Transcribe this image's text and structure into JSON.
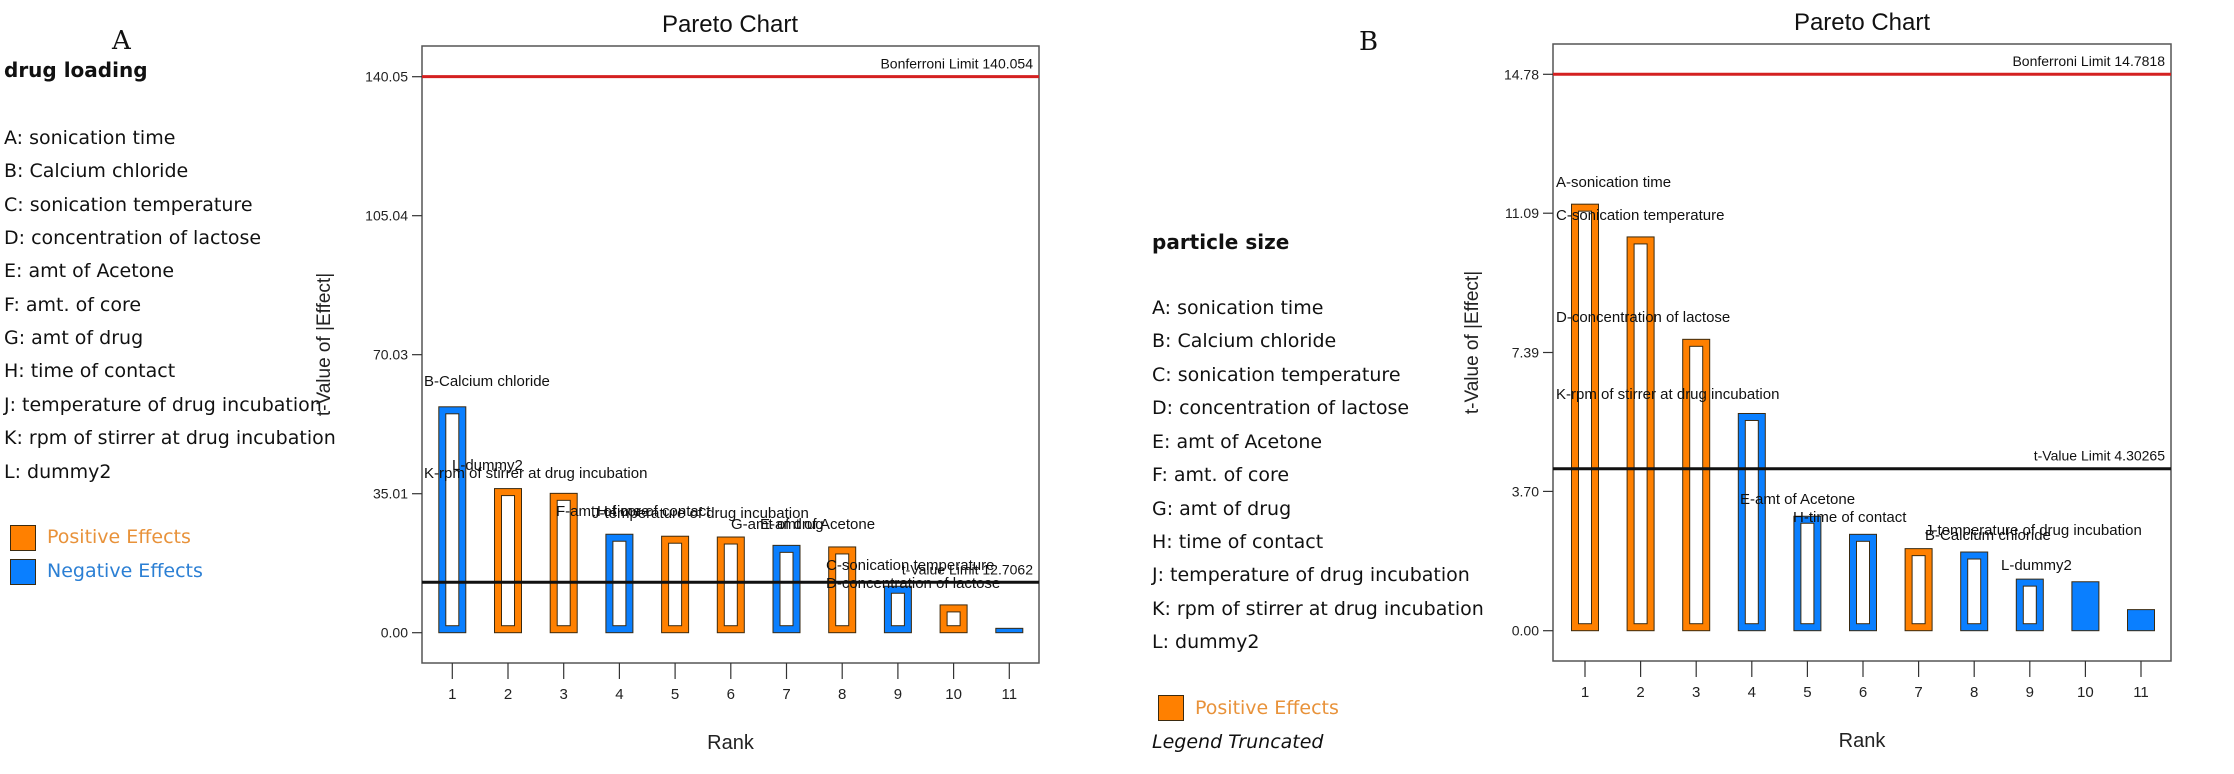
{
  "panels": [
    {
      "letter": "A",
      "response": "drug loading",
      "factors": [
        "A: sonication time",
        "B: Calcium chloride",
        "C: sonication temperature",
        "D: concentration of lactose",
        "E: amt of Acetone",
        "F: amt. of core",
        "G: amt of drug",
        "H: time of contact",
        "J: temperature of drug incubation",
        "K: rpm of stirrer at drug incubation",
        "L: dummy2"
      ],
      "legend": [
        {
          "label": "Positive Effects",
          "swatch": "#ff8000",
          "text_color": "#e8923a"
        },
        {
          "label": "Negative Effects",
          "swatch": "#0a7fff",
          "text_color": "#2b7fd4"
        }
      ],
      "legend_note": ""
    },
    {
      "letter": "B",
      "response": "particle size",
      "factors": [
        "A: sonication time",
        "B: Calcium chloride",
        "C: sonication temperature",
        "D: concentration of lactose",
        "E: amt of Acetone",
        "F: amt. of core",
        "G: amt of drug",
        "H: time of contact",
        "J: temperature of drug incubation",
        "K: rpm of stirrer at drug incubation",
        "L: dummy2"
      ],
      "legend": [
        {
          "label": "Positive Effects",
          "swatch": "#ff8000",
          "text_color": "#e8923a"
        }
      ],
      "legend_note": "Legend Truncated"
    }
  ],
  "colors": {
    "positive": "#ff8000",
    "negative": "#0a7fff",
    "bar_outline": "#3a2a10",
    "bonferroni": "#d42020",
    "t_limit": "#111111",
    "frame": "#555555"
  },
  "chart_data": [
    {
      "type": "bar",
      "title": "Pareto Chart",
      "xlabel": "Rank",
      "ylabel": "t-Value of |Effect|",
      "categories": [
        "1",
        "2",
        "3",
        "4",
        "5",
        "6",
        "7",
        "8",
        "9",
        "10",
        "11"
      ],
      "yticks": [
        "0.00",
        "35.01",
        "70.03",
        "105.04",
        "140.05"
      ],
      "ytick_values": [
        0,
        35.01,
        70.03,
        105.04,
        140.05
      ],
      "ylim": [
        -7.8,
        155
      ],
      "grid": false,
      "reference_lines": [
        {
          "name": "Bonferroni Limit",
          "label": "Bonferroni Limit 140.054",
          "value": 140.054,
          "color": "bonferroni"
        },
        {
          "name": "t-Value Limit",
          "label": "t-Value Limit 12.7062",
          "value": 12.7062,
          "color": "t_limit"
        }
      ],
      "bars": [
        {
          "rank": 1,
          "term": "B-Calcium chloride",
          "value": 56.9,
          "effect": "negative",
          "filled": false
        },
        {
          "rank": 2,
          "term": "L-dummy2",
          "value": 36.3,
          "effect": "positive",
          "filled": false
        },
        {
          "rank": 3,
          "term": "K-rpm of stirrer at drug incubation",
          "value": 35.1,
          "effect": "positive",
          "filled": false
        },
        {
          "rank": 4,
          "term": "F-amt. of core",
          "value": 24.8,
          "effect": "negative",
          "filled": false
        },
        {
          "rank": 5,
          "term": "H-time of contact",
          "value": 24.3,
          "effect": "positive",
          "filled": false
        },
        {
          "rank": 6,
          "term": "J-temperature of drug incubation",
          "value": 24.1,
          "effect": "positive",
          "filled": false
        },
        {
          "rank": 7,
          "term": "G-amt of drug",
          "value": 22.0,
          "effect": "negative",
          "filled": false
        },
        {
          "rank": 8,
          "term": "E-amt of Acetone",
          "value": 21.6,
          "effect": "positive",
          "filled": false
        },
        {
          "rank": 9,
          "term": "C-sonication temperature",
          "value": 11.7,
          "effect": "negative",
          "filled": false
        },
        {
          "rank": 10,
          "term": "D-concentration of lactose",
          "value": 7.0,
          "effect": "positive",
          "filled": false
        },
        {
          "rank": 11,
          "term": "",
          "value": 1.1,
          "effect": "negative",
          "filled": true
        }
      ],
      "legend": "left"
    },
    {
      "type": "bar",
      "title": "Pareto Chart",
      "xlabel": "Rank",
      "ylabel": "t-Value of |Effect|",
      "categories": [
        "1",
        "2",
        "3",
        "4",
        "5",
        "6",
        "7",
        "8",
        "9",
        "10",
        "11"
      ],
      "yticks": [
        "0.00",
        "3.70",
        "7.39",
        "11.09",
        "14.78"
      ],
      "ytick_values": [
        0,
        3.7,
        7.39,
        11.09,
        14.78
      ],
      "ylim": [
        -0.8,
        15.9
      ],
      "grid": false,
      "reference_lines": [
        {
          "name": "Bonferroni Limit",
          "label": "Bonferroni Limit 14.7818",
          "value": 14.7818,
          "color": "bonferroni"
        },
        {
          "name": "t-Value Limit",
          "label": "t-Value Limit 4.30265",
          "value": 4.30265,
          "color": "t_limit"
        }
      ],
      "bars": [
        {
          "rank": 1,
          "term": "A-sonication time",
          "value": 11.33,
          "effect": "positive",
          "filled": false
        },
        {
          "rank": 2,
          "term": "C-sonication temperature",
          "value": 10.46,
          "effect": "positive",
          "filled": false
        },
        {
          "rank": 3,
          "term": "D-concentration of lactose",
          "value": 7.74,
          "effect": "positive",
          "filled": false
        },
        {
          "rank": 4,
          "term": "K-rpm of stirrer at drug incubation",
          "value": 5.77,
          "effect": "negative",
          "filled": false
        },
        {
          "rank": 5,
          "term": "E-amt of Acetone",
          "value": 3.04,
          "effect": "negative",
          "filled": false
        },
        {
          "rank": 6,
          "term": "H-time of contact",
          "value": 2.56,
          "effect": "negative",
          "filled": false
        },
        {
          "rank": 7,
          "term": "J-temperature of drug incubation",
          "value": 2.18,
          "effect": "positive",
          "filled": false
        },
        {
          "rank": 8,
          "term": "B-Calcium chloride",
          "value": 2.09,
          "effect": "negative",
          "filled": false
        },
        {
          "rank": 9,
          "term": "L-dummy2",
          "value": 1.37,
          "effect": "negative",
          "filled": false
        },
        {
          "rank": 10,
          "term": "",
          "value": 1.3,
          "effect": "negative",
          "filled": true
        },
        {
          "rank": 11,
          "term": "",
          "value": 0.56,
          "effect": "negative",
          "filled": true
        }
      ],
      "legend": "left"
    }
  ]
}
